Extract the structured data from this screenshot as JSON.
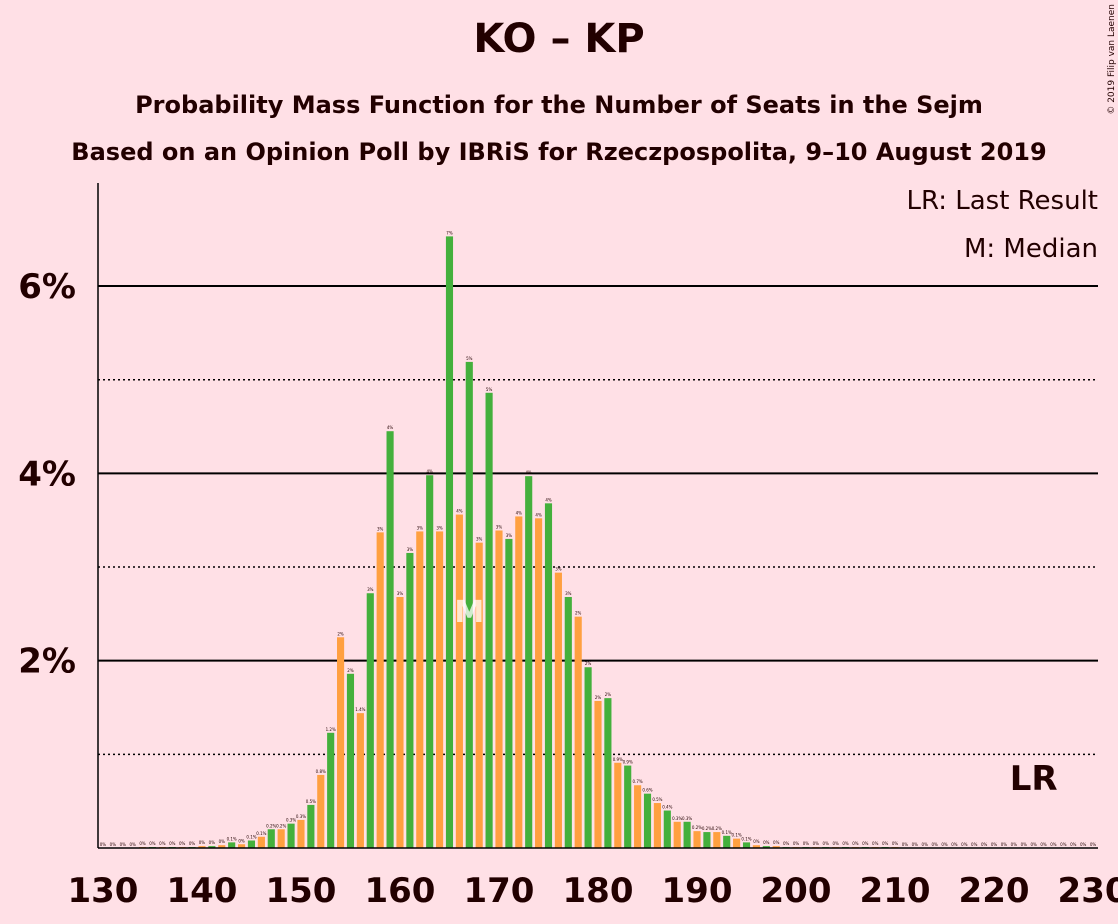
{
  "chart_data": {
    "type": "bar",
    "title": "KO – KP",
    "subtitle": "Probability Mass Function for the Number of Seats in the Sejm",
    "subtitle2": "Based on an Opinion Poll by IBRiS for Rzeczpospolita, 9–10 August 2019",
    "credit": "© 2019 Filip van Laenen",
    "legend": [
      "LR: Last Result",
      "M: Median"
    ],
    "median": {
      "x": 167,
      "label": "M"
    },
    "last_result": {
      "x": 224,
      "label": "LR"
    },
    "colors": [
      "#ffa040",
      "#44b03c"
    ],
    "x": [
      130,
      131,
      132,
      133,
      134,
      135,
      136,
      137,
      138,
      139,
      140,
      141,
      142,
      143,
      144,
      145,
      146,
      147,
      148,
      149,
      150,
      151,
      152,
      153,
      154,
      155,
      156,
      157,
      158,
      159,
      160,
      161,
      162,
      163,
      164,
      165,
      166,
      167,
      168,
      169,
      170,
      171,
      172,
      173,
      174,
      175,
      176,
      177,
      178,
      179,
      180,
      181,
      182,
      183,
      184,
      185,
      186,
      187,
      188,
      189,
      190,
      191,
      192,
      193,
      194,
      195,
      196,
      197,
      198,
      199,
      200,
      201,
      202,
      203,
      204,
      205,
      206,
      207,
      208,
      209,
      210,
      211,
      212,
      213,
      214,
      215,
      216,
      217,
      218,
      219,
      220,
      221,
      222,
      223,
      224,
      225,
      226,
      227,
      228,
      229,
      230
    ],
    "values": [
      0,
      0,
      0,
      0,
      0.01,
      0.01,
      0.01,
      0.01,
      0.01,
      0.01,
      0.02,
      0.02,
      0.03,
      0.06,
      0.04,
      0.08,
      0.12,
      0.2,
      0.2,
      0.26,
      0.3,
      0.46,
      0.78,
      1.23,
      2.25,
      1.86,
      1.44,
      2.72,
      3.37,
      4.45,
      2.68,
      3.15,
      3.38,
      3.98,
      3.38,
      6.53,
      3.56,
      5.19,
      3.26,
      4.86,
      3.39,
      3.3,
      3.54,
      3.97,
      3.52,
      3.68,
      2.94,
      2.68,
      2.47,
      1.93,
      1.57,
      1.6,
      0.91,
      0.88,
      0.67,
      0.58,
      0.48,
      0.4,
      0.28,
      0.28,
      0.18,
      0.17,
      0.17,
      0.13,
      0.1,
      0.06,
      0.03,
      0.02,
      0.02,
      0.01,
      0.01,
      0.01,
      0.01,
      0.01,
      0.01,
      0.01,
      0.01,
      0.01,
      0.01,
      0.01,
      0.01,
      0,
      0,
      0,
      0,
      0,
      0,
      0,
      0,
      0,
      0,
      0,
      0,
      0,
      0,
      0,
      0,
      0,
      0,
      0,
      0
    ],
    "value_labels": [
      "0%",
      "0%",
      "0%",
      "0%",
      "0%",
      "0%",
      "0%",
      "0%",
      "0%",
      "0%",
      "0%",
      "0%",
      "0%",
      "0.1%",
      "0%",
      "0.1%",
      "0.1%",
      "0.2%",
      "0.2%",
      "0.3%",
      "0.3%",
      "0.5%",
      "0.8%",
      "1.2%",
      "2%",
      "2%",
      "1.4%",
      "3%",
      "3%",
      "4%",
      "3%",
      "3%",
      "3%",
      "4%",
      "3%",
      "7%",
      "4%",
      "5%",
      "3%",
      "5%",
      "3%",
      "3%",
      "4%",
      "4%",
      "4%",
      "4%",
      "3%",
      "3%",
      "2%",
      "2%",
      "2%",
      "2%",
      "0.9%",
      "0.9%",
      "0.7%",
      "0.6%",
      "0.5%",
      "0.4%",
      "0.3%",
      "0.3%",
      "0.2%",
      "0.2%",
      "0.2%",
      "0.1%",
      "0.1%",
      "0.1%",
      "0%",
      "0%",
      "0%",
      "0%",
      "0%",
      "0%",
      "0%",
      "0%",
      "0%",
      "0%",
      "0%",
      "0%",
      "0%",
      "0%",
      "0%",
      "0%",
      "0%",
      "0%",
      "0%",
      "0%",
      "0%",
      "0%",
      "0%",
      "0%",
      "0%",
      "0%",
      "0%",
      "0%",
      "0%",
      "0%",
      "0%",
      "0%",
      "0%",
      "0%",
      "0%"
    ],
    "xlim": [
      129.5,
      230.5
    ],
    "xticks": [
      130,
      140,
      150,
      160,
      170,
      180,
      190,
      200,
      210,
      220,
      230
    ],
    "ylim": [
      0,
      7.1
    ],
    "yticks": [
      {
        "value": 2,
        "label": "2%"
      },
      {
        "value": 4,
        "label": "4%"
      },
      {
        "value": 6,
        "label": "6%"
      }
    ],
    "minor_yticks": [
      1,
      3,
      5
    ],
    "grid": true
  }
}
